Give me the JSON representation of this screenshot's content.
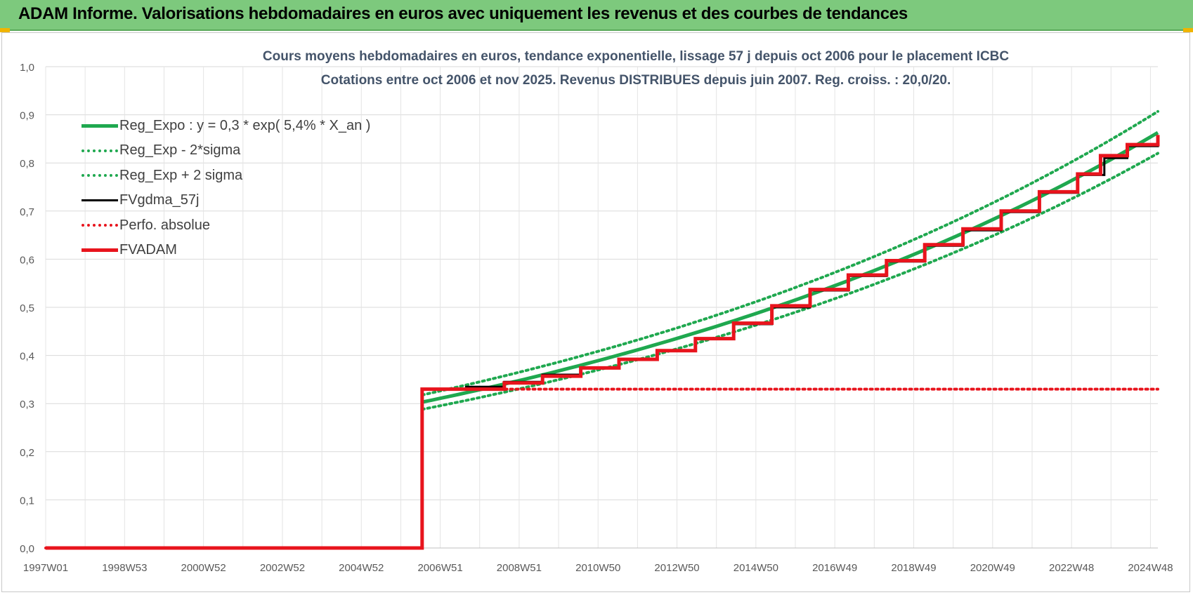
{
  "banner": {
    "title": "ADAM Informe. Valorisations hebdomadaires en euros avec uniquement les revenus et des courbes de tendances"
  },
  "chart_data": {
    "type": "line",
    "title": "Cours moyens hebdomadaires en euros, tendance exponentielle, lissage 57 j depuis oct 2006 pour le placement ICBC",
    "subtitle": "Cotations entre oct 2006 et nov 2025. Revenus DISTRIBUES depuis juin 2007. Reg. croiss. : 20,0/20.",
    "x_ticks": [
      "1997W01",
      "1998W53",
      "2000W52",
      "2002W52",
      "2004W52",
      "2006W51",
      "2008W51",
      "2010W50",
      "2012W50",
      "2014W50",
      "2016W49",
      "2018W49",
      "2020W49",
      "2022W48",
      "2024W48"
    ],
    "x_range_years": [
      1997.0,
      2026.1
    ],
    "y_ticks": [
      "0,0",
      "0,1",
      "0,2",
      "0,3",
      "0,4",
      "0,5",
      "0,6",
      "0,7",
      "0,8",
      "0,9",
      "1,0"
    ],
    "ylim": [
      0,
      1.0
    ],
    "grid": true,
    "legend_position": "top-left",
    "series": [
      {
        "name": "Reg_Expo : y = 0,3 * exp( 5,4% *  X_an )",
        "color": "#1fa84f",
        "style": "solid",
        "x": [
          2006.85,
          2010,
          2014,
          2018,
          2022,
          2026.1
        ],
        "y": [
          0.303,
          0.36,
          0.448,
          0.558,
          0.693,
          0.863
        ]
      },
      {
        "name": "Reg_Exp - 2*sigma",
        "color": "#1fa84f",
        "style": "dotted",
        "x": [
          2006.85,
          2010,
          2014,
          2018,
          2022,
          2026.1
        ],
        "y": [
          0.288,
          0.342,
          0.425,
          0.53,
          0.658,
          0.82
        ]
      },
      {
        "name": "Reg_Exp + 2 sigma",
        "color": "#1fa84f",
        "style": "dotted",
        "x": [
          2006.85,
          2010,
          2014,
          2018,
          2022,
          2026.1
        ],
        "y": [
          0.318,
          0.378,
          0.47,
          0.586,
          0.728,
          0.907
        ]
      },
      {
        "name": "FVgdma_57j",
        "color": "#000000",
        "style": "solid",
        "x": [
          1997.0,
          2006.85,
          2006.85,
          2008.0,
          2009.0,
          2010.0,
          2011.0,
          2012.0,
          2013.0,
          2014.0,
          2015.0,
          2016.0,
          2017.0,
          2018.0,
          2019.0,
          2020.0,
          2021.0,
          2022.0,
          2023.0,
          2024.0,
          2024.7,
          2025.3,
          2026.1
        ],
        "y": [
          0.0,
          0.0,
          0.33,
          0.335,
          0.345,
          0.36,
          0.375,
          0.392,
          0.41,
          0.435,
          0.465,
          0.5,
          0.535,
          0.565,
          0.595,
          0.628,
          0.66,
          0.698,
          0.738,
          0.775,
          0.81,
          0.835,
          0.858
        ]
      },
      {
        "name": "Perfo. absolue",
        "color": "#e8141d",
        "style": "dotted",
        "x": [
          1997.0,
          2006.85,
          2006.85,
          2026.1
        ],
        "y": [
          0.0,
          0.0,
          0.33,
          0.33
        ]
      },
      {
        "name": "FVADAM",
        "color": "#e8141d",
        "style": "step",
        "x": [
          1997.0,
          2006.85,
          2006.85,
          2008.0,
          2009.0,
          2010.0,
          2011.0,
          2012.0,
          2013.0,
          2014.0,
          2015.0,
          2016.0,
          2017.0,
          2018.0,
          2019.0,
          2020.0,
          2021.0,
          2022.0,
          2023.0,
          2024.0,
          2024.6,
          2025.3,
          2026.1
        ],
        "y": [
          0.0,
          0.0,
          0.33,
          0.33,
          0.343,
          0.357,
          0.374,
          0.392,
          0.41,
          0.435,
          0.467,
          0.503,
          0.537,
          0.567,
          0.597,
          0.63,
          0.663,
          0.7,
          0.74,
          0.777,
          0.815,
          0.838,
          0.858
        ]
      }
    ]
  },
  "legend": {
    "items": [
      {
        "label": "Reg_Expo : y = 0,3 * exp( 5,4% *  X_an )",
        "color": "#1fa84f",
        "style": "solid"
      },
      {
        "label": "Reg_Exp - 2*sigma",
        "color": "#1fa84f",
        "style": "dotted"
      },
      {
        "label": "Reg_Exp + 2 sigma",
        "color": "#1fa84f",
        "style": "dotted"
      },
      {
        "label": "FVgdma_57j",
        "color": "#000000",
        "style": "solid"
      },
      {
        "label": "Perfo. absolue",
        "color": "#e8141d",
        "style": "dotted"
      },
      {
        "label": "FVADAM",
        "color": "#e8141d",
        "style": "solid"
      }
    ]
  }
}
